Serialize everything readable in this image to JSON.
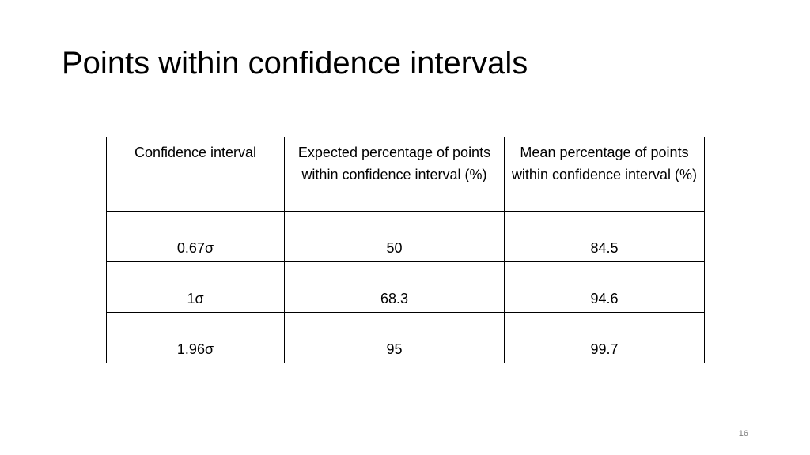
{
  "slide": {
    "title": "Points within confidence intervals",
    "page_number": "16"
  },
  "table": {
    "headers": [
      "Confidence interval",
      "Expected percentage of points within confidence interval (%)",
      "Mean percentage of points within confidence interval (%)"
    ],
    "rows": [
      [
        "0.67σ",
        "50",
        "84.5"
      ],
      [
        "1σ",
        "68.3",
        "94.6"
      ],
      [
        "1.96σ",
        "95",
        "99.7"
      ]
    ]
  }
}
